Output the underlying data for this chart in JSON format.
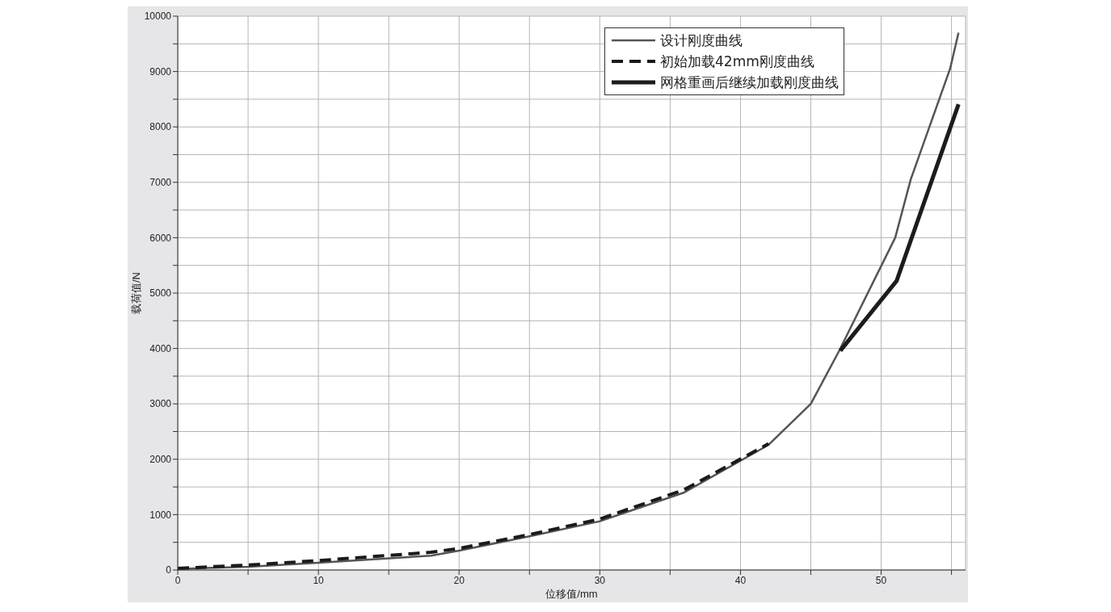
{
  "chart_data": {
    "type": "line",
    "xlabel": "位移值/mm",
    "ylabel": "载荷值/N",
    "xlim": [
      0,
      56
    ],
    "xticks": [
      0,
      {
        "value": 5,
        "label": null
      },
      10,
      {
        "value": 15,
        "label": null
      },
      20,
      {
        "value": 25,
        "label": null
      },
      30,
      {
        "value": 35,
        "label": null
      },
      40,
      {
        "value": 45,
        "label": null
      },
      50,
      {
        "value": 55,
        "label": null
      }
    ],
    "ylim": [
      0,
      10000
    ],
    "yticks": [
      0,
      {
        "value": 500,
        "label": null
      },
      1000,
      {
        "value": 1500,
        "label": null
      },
      2000,
      {
        "value": 2500,
        "label": null
      },
      3000,
      {
        "value": 3500,
        "label": null
      },
      4000,
      {
        "value": 4500,
        "label": null
      },
      5000,
      {
        "value": 5500,
        "label": null
      },
      6000,
      {
        "value": 6500,
        "label": null
      },
      7000,
      {
        "value": 7500,
        "label": null
      },
      8000,
      {
        "value": 8500,
        "label": null
      },
      9000,
      {
        "value": 9500,
        "label": null
      },
      10000
    ],
    "grid": true,
    "legend": "top",
    "marker": "none",
    "series": [
      {
        "name": "设计刚度曲线",
        "color": "#555555",
        "line_style": "solid",
        "x": [
          0,
          5,
          10,
          18,
          20,
          25,
          30,
          36,
          42,
          45,
          47,
          51,
          52.1,
          54.9,
          55.5
        ],
        "values": [
          20,
          60,
          130,
          260,
          350,
          610,
          880,
          1400,
          2260,
          3000,
          3950,
          6000,
          7050,
          9050,
          9700
        ]
      },
      {
        "name": "初始加载42mm刚度曲线",
        "color": "#1a1a1a",
        "line_style": "dashed",
        "x": [
          0,
          5,
          10,
          18,
          20,
          25,
          30,
          36,
          42
        ],
        "values": [
          30,
          90,
          170,
          320,
          390,
          640,
          920,
          1450,
          2280
        ]
      },
      {
        "name": "网格重画后继续加载刚度曲线",
        "color": "#1c1c1c",
        "line_style": "solid",
        "x": [
          47.1,
          51.1,
          55.5
        ],
        "values": [
          3960,
          5220,
          8410
        ]
      }
    ]
  }
}
